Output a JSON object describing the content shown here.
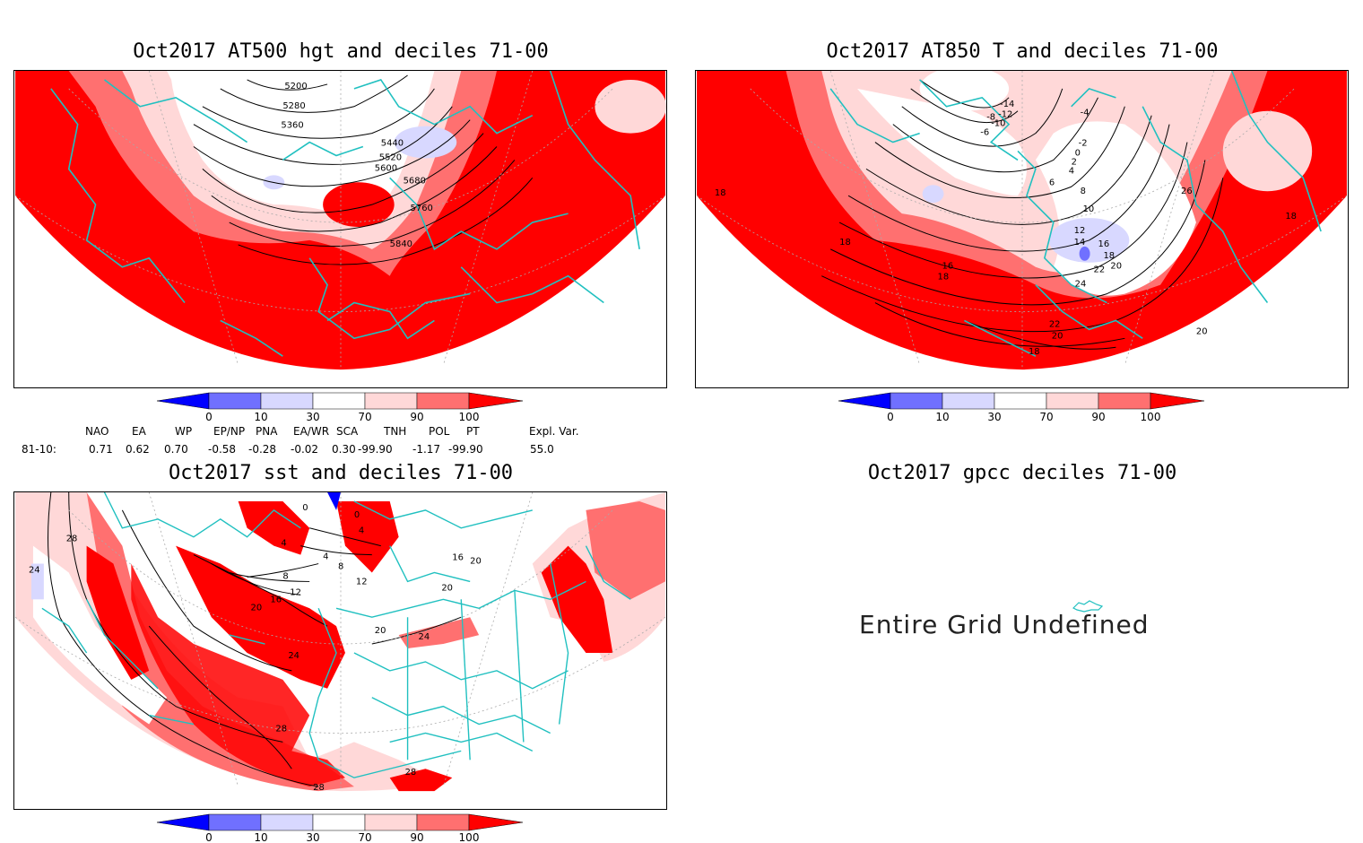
{
  "panels": [
    {
      "id": "hgt500",
      "title": "Oct2017 AT500 hgt and deciles 71-00",
      "contour_labels": [
        "5200",
        "5280",
        "5360",
        "5440",
        "5520",
        "5600",
        "5680",
        "5760",
        "5840"
      ]
    },
    {
      "id": "t850",
      "title": "Oct2017 AT850 T and deciles 71-00",
      "contour_labels": [
        "-14",
        "-12",
        "-10",
        "-8",
        "-6",
        "-4",
        "-2",
        "0",
        "2",
        "4",
        "6",
        "8",
        "10",
        "12",
        "14",
        "16",
        "18",
        "20",
        "22",
        "24",
        "26",
        "18",
        "16",
        "18",
        "18",
        "20",
        "22",
        "20",
        "18",
        "18"
      ]
    },
    {
      "id": "sst",
      "title": "Oct2017 sst and deciles 71-00",
      "contour_labels": [
        "28",
        "24",
        "0",
        "0",
        "4",
        "4",
        "4",
        "8",
        "8",
        "12",
        "16",
        "12",
        "20",
        "24",
        "20",
        "24",
        "28",
        "28",
        "28",
        "20",
        "16",
        "20"
      ]
    },
    {
      "id": "gpcc",
      "title": "Oct2017 gpcc deciles 71-00",
      "message": "Entire Grid Undefined"
    }
  ],
  "colorbar": {
    "ticks": [
      "0",
      "10",
      "30",
      "70",
      "90",
      "100"
    ],
    "colors": [
      "#0000ff",
      "#7070ff",
      "#d8d8ff",
      "#ffffff",
      "#ffd8d8",
      "#ff7070",
      "#ff0000"
    ]
  },
  "teleconnections": {
    "headers": [
      "NAO",
      "EA",
      "WP",
      "EP/NP",
      "PNA",
      "EA/WR",
      "SCA",
      "TNH",
      "POL",
      "PT",
      "Expl. Var."
    ],
    "row_label": "81-10:",
    "values": [
      "0.71",
      "0.62",
      "0.70",
      "-0.58",
      "-0.28",
      "-0.02",
      "0.30",
      "-99.90",
      "-1.17",
      "-99.90",
      "55.0"
    ]
  },
  "map_colors": {
    "coast": "#20c0c0",
    "contour": "#000000",
    "grid": "#aaaaaa"
  }
}
